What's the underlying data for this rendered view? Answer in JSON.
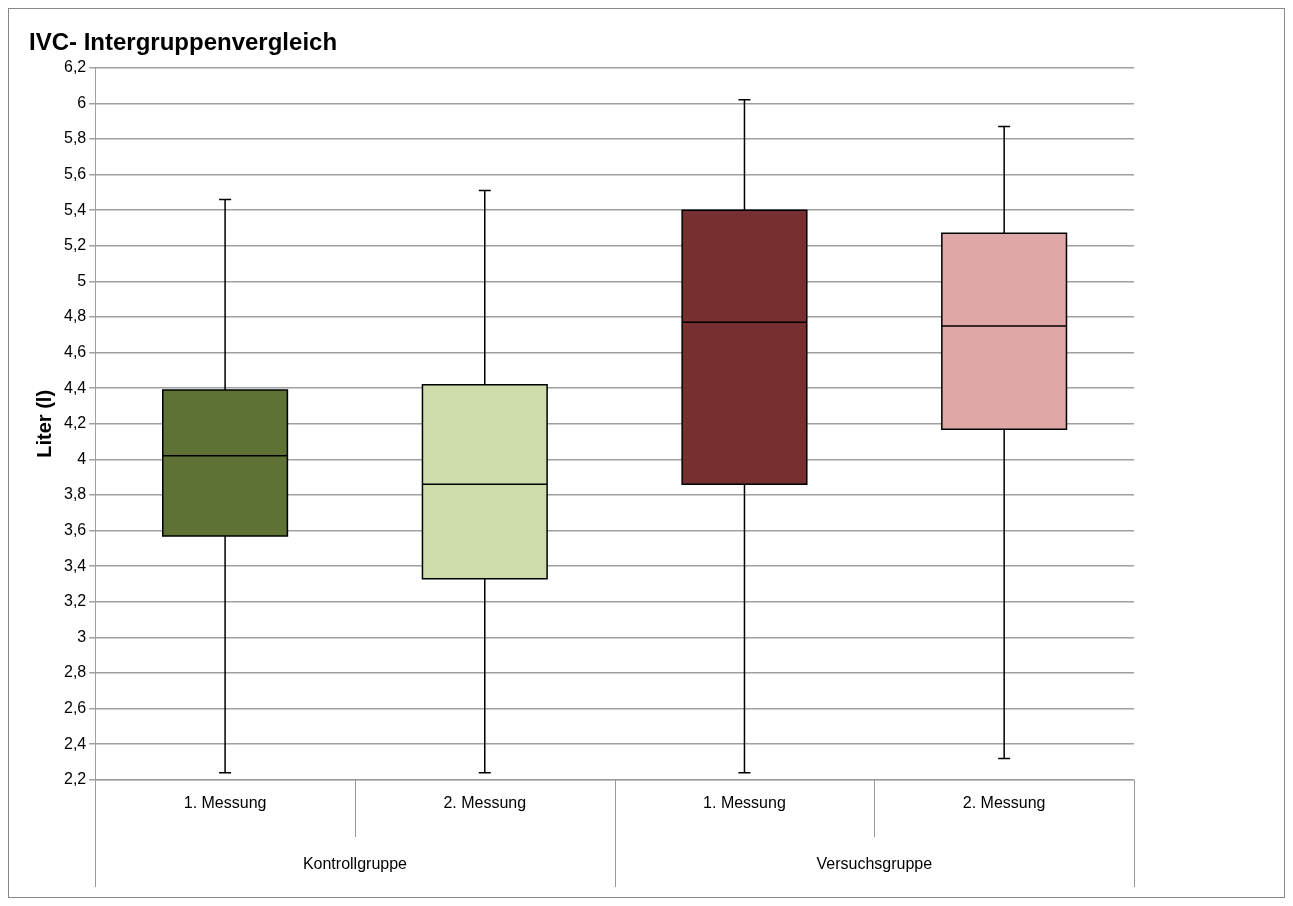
{
  "chart_data": {
    "type": "box",
    "title": "IVC- Intergruppenvergleich",
    "ylabel": "Liter (l)",
    "categories": [
      "1. Messung",
      "2. Messung",
      "1. Messung",
      "2. Messung"
    ],
    "colors": [
      "#5e7236",
      "#cddcaa",
      "#772f2f",
      "#e0a7a7"
    ],
    "boxes": [
      {
        "low": 2.24,
        "q1": 3.57,
        "median": 4.02,
        "q3": 4.39,
        "high": 5.46
      },
      {
        "low": 2.24,
        "q1": 3.33,
        "median": 3.86,
        "q3": 4.42,
        "high": 5.51
      },
      {
        "low": 2.24,
        "q1": 3.86,
        "median": 4.77,
        "q3": 5.4,
        "high": 6.02
      },
      {
        "low": 2.32,
        "q1": 4.17,
        "median": 4.75,
        "q3": 5.27,
        "high": 5.87
      }
    ],
    "annotations": [
      "Kontrollgruppe",
      "Versuchsgruppe"
    ],
    "ylim": [
      2.2,
      6.2
    ],
    "yticks": [
      {
        "value": 2.2,
        "label": "2,2"
      },
      {
        "value": 2.4,
        "label": "2,4"
      },
      {
        "value": 2.6,
        "label": "2,6"
      },
      {
        "value": 2.8,
        "label": "2,8"
      },
      3,
      {
        "value": 3.2,
        "label": "3,2"
      },
      {
        "value": 3.4,
        "label": "3,4"
      },
      {
        "value": 3.6,
        "label": "3,6"
      },
      {
        "value": 3.8,
        "label": "3,8"
      },
      4,
      {
        "value": 4.2,
        "label": "4,2"
      },
      {
        "value": 4.4,
        "label": "4,4"
      },
      {
        "value": 4.6,
        "label": "4,6"
      },
      {
        "value": 4.8,
        "label": "4,8"
      },
      5,
      {
        "value": 5.2,
        "label": "5,2"
      },
      {
        "value": 5.4,
        "label": "5,4"
      },
      {
        "value": 5.6,
        "label": "5,6"
      },
      {
        "value": 5.8,
        "label": "5,8"
      },
      6,
      {
        "value": 6.2,
        "label": "6,2"
      }
    ],
    "grid": "y",
    "legend": false
  }
}
